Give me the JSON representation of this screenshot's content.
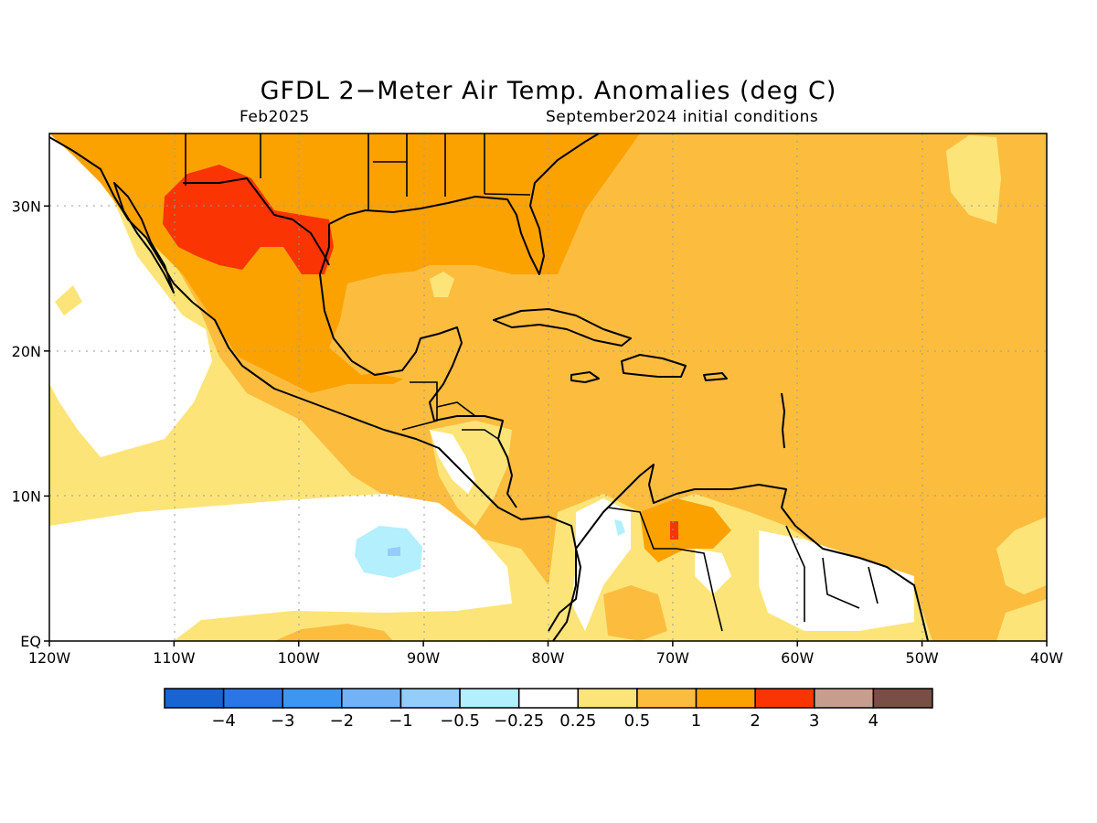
{
  "header": {
    "title": "GFDL 2−Meter Air Temp. Anomalies (deg C)",
    "valid_month": "Feb2025",
    "init_conditions": "September2024 initial conditions"
  },
  "map": {
    "lon_range": [
      -120,
      -40
    ],
    "lat_range": [
      0,
      35
    ],
    "lon_ticks": [
      {
        "lon": -120,
        "label": "120W"
      },
      {
        "lon": -110,
        "label": "110W"
      },
      {
        "lon": -100,
        "label": "100W"
      },
      {
        "lon": -90,
        "label": "90W"
      },
      {
        "lon": -80,
        "label": "80W"
      },
      {
        "lon": -70,
        "label": "70W"
      },
      {
        "lon": -60,
        "label": "60W"
      },
      {
        "lon": -50,
        "label": "50W"
      },
      {
        "lon": -40,
        "label": "40W"
      }
    ],
    "lat_ticks": [
      {
        "lat": 0,
        "label": "EQ"
      },
      {
        "lat": 10,
        "label": "10N"
      },
      {
        "lat": 20,
        "label": "20N"
      },
      {
        "lat": 30,
        "label": "30N"
      }
    ],
    "grid": true,
    "background_color": "#fcbd3f"
  },
  "colorbar": {
    "colors": [
      "#1764d2",
      "#2a76e6",
      "#3c96f2",
      "#74b2f7",
      "#94cdfa",
      "#b3effc",
      "#ffffff",
      "#fde479",
      "#fcbd3f",
      "#fba201",
      "#fa3403",
      "#c79d8e",
      "#784e45"
    ],
    "labels": [
      "−4",
      "−3",
      "−2",
      "−1",
      "−0.5",
      "−0.25",
      "0.25",
      "0.5",
      "1",
      "2",
      "3",
      "4"
    ]
  }
}
